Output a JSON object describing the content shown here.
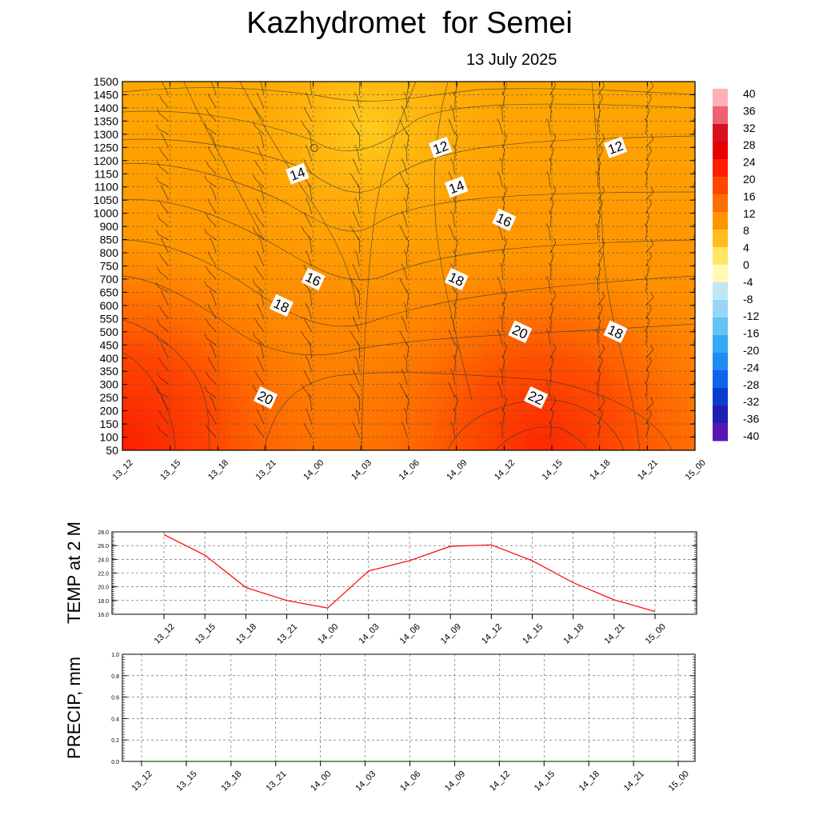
{
  "header": {
    "title": "Kazhydromet  for Semei",
    "subtitle": "13 July 2025"
  },
  "chart_data": [
    {
      "type": "heatmap",
      "description_role": "vertical cross-section of temperature with wind barbs",
      "x_ticks": [
        "13_12",
        "13_15",
        "13_18",
        "13_21",
        "14_00",
        "14_03",
        "14_06",
        "14_09",
        "14_12",
        "14_15",
        "14_18",
        "14_21",
        "15_00"
      ],
      "y_ticks": [
        50,
        100,
        150,
        200,
        250,
        300,
        350,
        400,
        450,
        500,
        550,
        600,
        650,
        700,
        750,
        800,
        850,
        900,
        1000,
        1050,
        1100,
        1150,
        1200,
        1250,
        1300,
        1350,
        1400,
        1450,
        1500
      ],
      "contour_labels": [
        {
          "text": "14",
          "time": "13_23",
          "level": 1150
        },
        {
          "text": "12",
          "time": "14_08",
          "level": 1250
        },
        {
          "text": "12",
          "time": "14_19",
          "level": 1250
        },
        {
          "text": "14",
          "time": "14_09",
          "level": 1100
        },
        {
          "text": "16",
          "time": "14_12",
          "level": 950
        },
        {
          "text": "16",
          "time": "14_00",
          "level": 700
        },
        {
          "text": "18",
          "time": "14_09",
          "level": 700
        },
        {
          "text": "18",
          "time": "13_22",
          "level": 600
        },
        {
          "text": "20",
          "time": "14_13",
          "level": 500
        },
        {
          "text": "18",
          "time": "14_19",
          "level": 500
        },
        {
          "text": "20",
          "time": "13_21",
          "level": 250
        },
        {
          "text": "22",
          "time": "14_14",
          "level": 250
        }
      ],
      "colorbar": {
        "labels": [
          "40",
          "36",
          "32",
          "28",
          "24",
          "20",
          "16",
          "12",
          "8",
          "4",
          "0",
          "-4",
          "-8",
          "-12",
          "-16",
          "-20",
          "-24",
          "-28",
          "-32",
          "-36",
          "-40"
        ],
        "colors": [
          "#ffb0b8",
          "#f06070",
          "#d81020",
          "#e60000",
          "#ff1e00",
          "#ff4600",
          "#ff6e00",
          "#ff9600",
          "#ffbe1e",
          "#ffe664",
          "#fffab4",
          "#bfe6f5",
          "#96d7f5",
          "#64c3f5",
          "#32aaf5",
          "#1e8cf0",
          "#0f64eb",
          "#0a3cd2",
          "#1e1eb4",
          "#5a14b4",
          "#8c28e6"
        ]
      }
    },
    {
      "type": "line",
      "ylabel": "TEMP at 2 M",
      "x": [
        "13_12",
        "13_15",
        "13_18",
        "13_21",
        "14_00",
        "14_03",
        "14_06",
        "14_09",
        "14_12",
        "14_15",
        "14_18",
        "14_21",
        "15_00"
      ],
      "series": [
        {
          "values": [
            27.6,
            24.6,
            19.9,
            18.0,
            16.9,
            22.3,
            23.8,
            25.9,
            26.1,
            23.8,
            20.6,
            18.1,
            16.4
          ],
          "color": "#ff0000"
        }
      ],
      "ylim": [
        16.0,
        28.0
      ],
      "y_ticks": [
        "28.0",
        "26.0",
        "24.0",
        "22.0",
        "20.0",
        "18.0",
        "16.0"
      ],
      "grid": true
    },
    {
      "type": "line",
      "ylabel": "PRECIP, mm",
      "x": [
        "13_12",
        "13_15",
        "13_18",
        "13_21",
        "14_00",
        "14_03",
        "14_06",
        "14_09",
        "14_12",
        "14_15",
        "14_18",
        "14_21",
        "15_00"
      ],
      "series": [
        {
          "values": [
            0,
            0,
            0,
            0,
            0,
            0,
            0,
            0,
            0,
            0,
            0,
            0,
            0
          ],
          "color": "#006400"
        }
      ],
      "ylim": [
        0.0,
        1.0
      ],
      "y_ticks": [
        "1.0",
        "0.8",
        "0.6",
        "0.4",
        "0.2",
        "0.0"
      ],
      "grid": true
    }
  ]
}
